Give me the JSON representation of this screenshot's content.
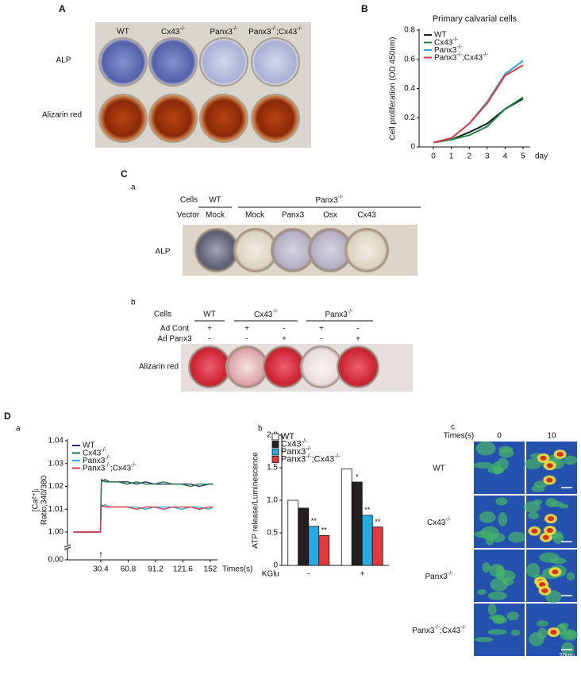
{
  "panels": {
    "A": {
      "label": "A",
      "columns": [
        "WT",
        "Cx43-/-",
        "Panx3-/-",
        "Panx3-/-;Cx43-/-"
      ],
      "rows": [
        "ALP",
        "Alizarin red"
      ]
    },
    "C": {
      "label": "C",
      "a": {
        "label": "a",
        "cells_label": "Cells",
        "cells": [
          "WT",
          "Panx3-/-"
        ],
        "vector_label": "Vector",
        "vectors": [
          "Mock",
          "Mock",
          "Panx3",
          "Osx",
          "Cx43"
        ],
        "row": "ALP"
      },
      "b": {
        "label": "b",
        "cells_label": "Cells",
        "cells": [
          "WT",
          "Cx43-/-",
          "Panx3-/-"
        ],
        "treatments": [
          {
            "name": "Ad Cont",
            "marks": [
              "+",
              "+",
              "-",
              "+",
              "-"
            ]
          },
          {
            "name": "Ad Panx3",
            "marks": [
              "-",
              "-",
              "+",
              "-",
              "+"
            ]
          }
        ],
        "row": "Alizarin red"
      }
    },
    "D": {
      "label": "D",
      "c": {
        "label": "c",
        "time_label": "Times(s)",
        "times": [
          "0",
          "10"
        ],
        "rows": [
          "WT",
          "Cx43-/-",
          "Panx3-/-",
          "Panx3-/-;Cx43-/-"
        ],
        "scale": "20um"
      }
    }
  },
  "chart_data": [
    {
      "panel": "B",
      "type": "line",
      "title": "Primary calvarial cells",
      "ylabel": "Cell proliferation (OD 450nm)",
      "xlabel": "day",
      "x": [
        0,
        1,
        2,
        3,
        4,
        5
      ],
      "xlim": [
        -0.8,
        5.4
      ],
      "xticks": [
        0,
        1,
        2,
        3,
        4,
        5
      ],
      "ylim": [
        0,
        0.8
      ],
      "yticks": [
        0,
        0.2,
        0.4,
        0.6,
        0.8
      ],
      "legend": "upper left",
      "series": [
        {
          "name": "WT",
          "color": "#1a1a1a",
          "values": [
            0.03,
            0.05,
            0.1,
            0.16,
            0.26,
            0.33
          ]
        },
        {
          "name": "Cx43-/-",
          "color": "#1e8c45",
          "values": [
            0.03,
            0.05,
            0.08,
            0.14,
            0.26,
            0.34
          ]
        },
        {
          "name": "Panx3-/-",
          "color": "#2aa8e0",
          "values": [
            0.03,
            0.06,
            0.16,
            0.31,
            0.5,
            0.59
          ]
        },
        {
          "name": "Panx3-/-;Cx43-/-",
          "color": "#e2383f",
          "values": [
            0.03,
            0.06,
            0.16,
            0.3,
            0.49,
            0.56
          ]
        }
      ]
    },
    {
      "panel": "a",
      "type": "line",
      "ylabel": [
        "[Ca²⁺]ᵢ",
        "Ratio,340/380"
      ],
      "xlabel": "Times(s)",
      "x": [
        0,
        10,
        20,
        30,
        31,
        35,
        40,
        50,
        60,
        70,
        80,
        90,
        100,
        110,
        120,
        130,
        140,
        150,
        155
      ],
      "xlim": [
        -6.6,
        160
      ],
      "xticks": [
        30.4,
        60.8,
        91.2,
        121.6,
        152
      ],
      "ylim": [
        0,
        1.04
      ],
      "axis_break": true,
      "yticks": [
        {
          "value": 0,
          "label": "0.00"
        },
        {
          "value": 1,
          "label": "1.00"
        },
        1.01,
        1.02,
        1.03,
        1.04
      ],
      "legend": "upper left",
      "series": [
        {
          "name": "WT",
          "color": "#2b2d6e",
          "values": [
            1.0,
            1.0,
            0.999,
            1.0,
            1.022,
            1.023,
            1.022,
            1.022,
            1.022,
            1.021,
            1.022,
            1.021,
            1.021,
            1.021,
            1.021,
            1.021,
            1.02,
            1.021,
            1.021
          ]
        },
        {
          "name": "Cx43-/-",
          "color": "#1e7a3c",
          "values": [
            1.0,
            0.999,
            1.0,
            1.0,
            1.023,
            1.022,
            1.022,
            1.022,
            1.021,
            1.022,
            1.021,
            1.021,
            1.022,
            1.021,
            1.021,
            1.02,
            1.021,
            1.021,
            1.021
          ]
        },
        {
          "name": "Panx3-/-",
          "color": "#2aa8e0",
          "values": [
            1.0,
            1.0,
            1.0,
            0.999,
            1.011,
            1.012,
            1.011,
            1.011,
            1.011,
            1.011,
            1.01,
            1.011,
            1.011,
            1.011,
            1.01,
            1.011,
            1.011,
            1.01,
            1.011
          ]
        },
        {
          "name": "Panx3-/-;Cx43-/-",
          "color": "#e2383f",
          "values": [
            1.0,
            1.0,
            1.0,
            1.0,
            1.012,
            1.011,
            1.011,
            1.011,
            1.011,
            1.01,
            1.011,
            1.011,
            1.01,
            1.011,
            1.011,
            1.011,
            1.01,
            1.011,
            1.011
          ]
        }
      ]
    },
    {
      "panel": "b",
      "type": "bar",
      "ylabel": "ATP release/Luminescence",
      "xlabel": "KGlu",
      "categories": [
        "-",
        "+"
      ],
      "ylim": [
        0,
        2
      ],
      "yticks": [
        0,
        0.5,
        {
          "value": 1,
          "label": "1.0"
        },
        1.5,
        {
          "value": 2,
          "label": "2.0"
        }
      ],
      "legend": "upper left",
      "series": [
        {
          "name": "WT",
          "color": "#ffffff",
          "values": [
            1.0,
            1.48
          ]
        },
        {
          "name": "Cx43-/-",
          "color": "#231f20",
          "values": [
            0.88,
            1.28
          ]
        },
        {
          "name": "Panx3-/-",
          "color": "#29abe2",
          "values": [
            0.6,
            0.77
          ]
        },
        {
          "name": "Panx3-/-;Cx43-/-",
          "color": "#e2383f",
          "values": [
            0.46,
            0.59
          ]
        }
      ],
      "annotations": [
        {
          "series": 1,
          "index": 1,
          "text": "*"
        },
        {
          "series": 2,
          "index": 0,
          "text": "**"
        },
        {
          "series": 2,
          "index": 1,
          "text": "**"
        },
        {
          "series": 3,
          "index": 0,
          "text": "**"
        },
        {
          "series": 3,
          "index": 1,
          "text": "**"
        }
      ]
    }
  ]
}
